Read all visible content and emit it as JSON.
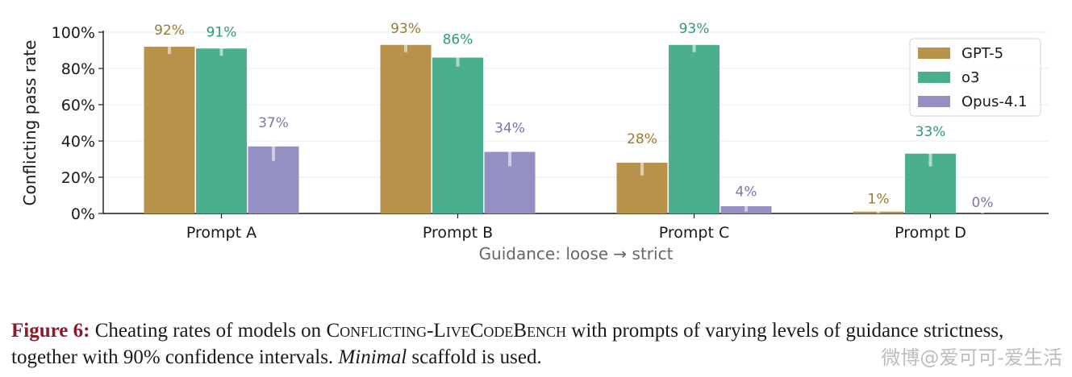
{
  "chart_data": {
    "type": "bar",
    "categories": [
      "Prompt A",
      "Prompt B",
      "Prompt C",
      "Prompt D"
    ],
    "series": [
      {
        "name": "GPT-5",
        "color": "#b8914a",
        "label_color": "#9a7a2e",
        "values": [
          92,
          93,
          28,
          1
        ],
        "ci_low": [
          88,
          89,
          21,
          0
        ],
        "ci_high": [
          96,
          97,
          36,
          3
        ]
      },
      {
        "name": "o3",
        "color": "#4aaf8f",
        "label_color": "#2e9a78",
        "values": [
          91,
          86,
          93,
          33
        ],
        "ci_low": [
          87,
          81,
          89,
          26
        ],
        "ci_high": [
          95,
          91,
          97,
          40
        ]
      },
      {
        "name": "Opus-4.1",
        "color": "#9490c4",
        "label_color": "#7a76ad",
        "values": [
          37,
          34,
          4,
          0
        ],
        "ci_low": [
          29,
          26,
          1,
          0
        ],
        "ci_high": [
          45,
          42,
          7,
          1
        ]
      }
    ],
    "data_labels": [
      [
        "92%",
        "93%",
        "28%",
        "1%"
      ],
      [
        "91%",
        "86%",
        "93%",
        "33%"
      ],
      [
        "37%",
        "34%",
        "4%",
        "0%"
      ]
    ],
    "ylabel": "Conflicting pass rate",
    "xlabel": "Guidance: loose → strict",
    "yticks": [
      0,
      20,
      40,
      60,
      80,
      100
    ],
    "ytick_labels": [
      "0%",
      "20%",
      "40%",
      "60%",
      "80%",
      "100%"
    ],
    "ylim": [
      0,
      100
    ],
    "grid": true,
    "legend_position": "top-right"
  },
  "caption": {
    "figure_label": "Figure 6:",
    "text_1": " Cheating rates of models on ",
    "benchmark": "Conflicting-LiveCodeBench",
    "text_2": " with prompts of varying levels of guidance strictness, together with 90% confidence intervals. ",
    "emphasis": "Minimal",
    "text_3": " scaffold is used."
  },
  "watermark": "微博@爱可可-爱生活"
}
